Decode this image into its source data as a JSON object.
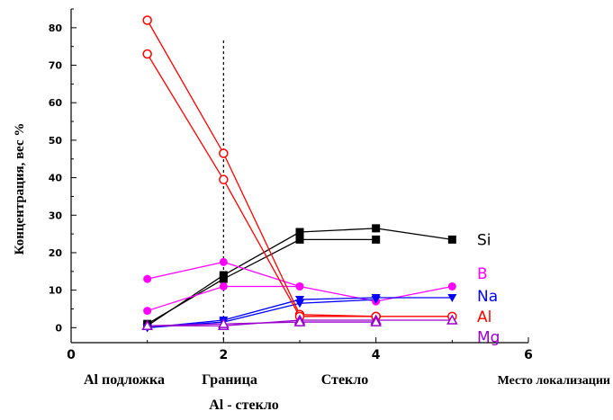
{
  "chart_data": {
    "type": "line",
    "title": "",
    "xlabel": "Место локализации",
    "ylabel": "Концентрация, вес %",
    "xlim": [
      0,
      6
    ],
    "ylim": [
      -4,
      85
    ],
    "x_ticks": [
      0,
      2,
      4,
      6
    ],
    "y_ticks": [
      0,
      10,
      20,
      30,
      40,
      50,
      60,
      70,
      80
    ],
    "region_labels": [
      "Al подложка",
      "Граница",
      "Al - стекло",
      "Стекло"
    ],
    "boundary_x": 2,
    "series": [
      {
        "name": "Si",
        "color": "#000000",
        "marker": "square",
        "x": [
          1,
          2,
          3,
          4,
          5
        ],
        "values": [
          1.0,
          13.0,
          23.5,
          23.5,
          null
        ]
      },
      {
        "name": "Si",
        "color": "#000000",
        "marker": "square",
        "x": [
          1,
          2,
          3,
          4,
          5
        ],
        "values": [
          0.5,
          14.0,
          25.5,
          26.5,
          23.5
        ]
      },
      {
        "name": "B",
        "color": "#ff00ff",
        "marker": "circle-filled",
        "x": [
          1,
          2,
          3,
          4,
          5
        ],
        "values": [
          13.0,
          17.5,
          11.0,
          7.0,
          11.0
        ]
      },
      {
        "name": "B",
        "color": "#ff00ff",
        "marker": "circle-filled",
        "x": [
          1,
          2,
          3,
          4,
          5
        ],
        "values": [
          4.5,
          11.0,
          11.0,
          null,
          null
        ]
      },
      {
        "name": "Na",
        "color": "#0000ff",
        "marker": "triangle-down",
        "x": [
          1,
          2,
          3,
          4,
          5
        ],
        "values": [
          0.0,
          2.0,
          7.5,
          8.0,
          8.0
        ]
      },
      {
        "name": "Na",
        "color": "#0000ff",
        "marker": "triangle-down",
        "x": [
          1,
          2,
          3,
          4,
          5
        ],
        "values": [
          0.0,
          1.5,
          6.5,
          7.5,
          null
        ]
      },
      {
        "name": "Al",
        "color": "#ff0000",
        "marker": "circle-open",
        "x": [
          1,
          2,
          3,
          4,
          5
        ],
        "values": [
          82.0,
          46.5,
          3.5,
          3.0,
          3.0
        ]
      },
      {
        "name": "Al",
        "color": "#ff0000",
        "marker": "circle-open",
        "x": [
          1,
          2,
          3,
          4,
          5
        ],
        "values": [
          73.0,
          39.5,
          3.0,
          3.0,
          null
        ]
      },
      {
        "name": "Mg",
        "color": "#9900cc",
        "marker": "triangle-open",
        "x": [
          1,
          2,
          3,
          4,
          5
        ],
        "values": [
          0.5,
          0.5,
          2.0,
          2.0,
          2.0
        ]
      },
      {
        "name": "Mg",
        "color": "#9900cc",
        "marker": "triangle-open",
        "x": [
          1,
          2,
          3,
          4,
          5
        ],
        "values": [
          0.5,
          1.0,
          1.5,
          1.5,
          null
        ]
      }
    ],
    "legend": [
      {
        "label": "Si",
        "color": "#000000",
        "value": 23.5
      },
      {
        "label": "B",
        "color": "#ff00ff",
        "value": 14.5
      },
      {
        "label": "Na",
        "color": "#0000ff",
        "value": 8.5
      },
      {
        "label": "Al",
        "color": "#ff0000",
        "value": 3.0
      },
      {
        "label": "Mg",
        "color": "#9900cc",
        "value": -2.5
      }
    ]
  }
}
